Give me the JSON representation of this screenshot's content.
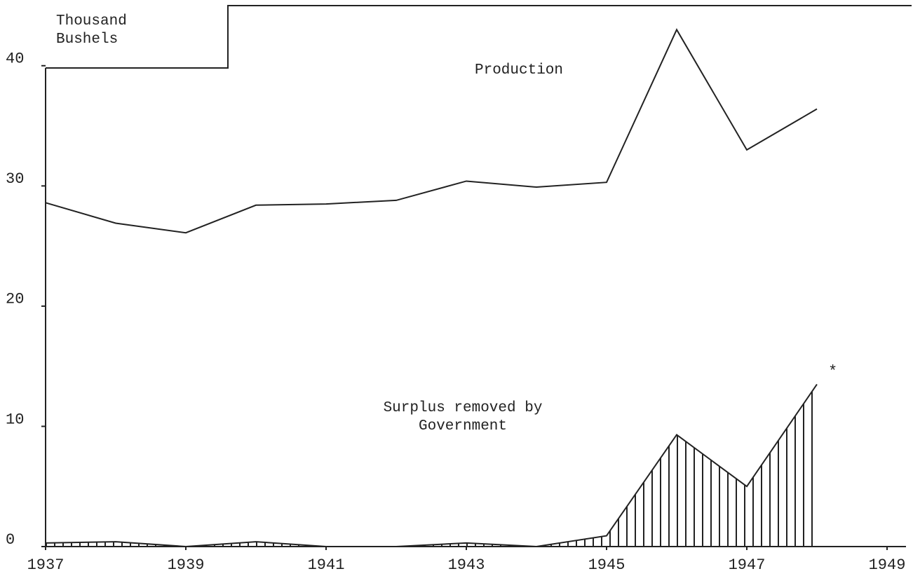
{
  "chart_data": {
    "type": "line",
    "y_label": "Thousand Bushels",
    "x": [
      1937,
      1938,
      1939,
      1940,
      1941,
      1942,
      1943,
      1944,
      1945,
      1946,
      1947,
      1948
    ],
    "series": [
      {
        "name": "Production",
        "color": "#222222",
        "values": [
          28.6,
          26.9,
          26.1,
          28.4,
          28.5,
          28.8,
          30.4,
          29.9,
          30.3,
          43.0,
          33.0,
          36.4
        ]
      },
      {
        "name": "Surplus removed by Government",
        "color": "#222222",
        "hatched": true,
        "values": [
          0.3,
          0.4,
          0,
          0.4,
          0,
          0,
          0.3,
          0,
          0.9,
          9.3,
          5.0,
          13.5
        ]
      }
    ],
    "annotation": "*",
    "xlim": [
      1937,
      1949.25
    ],
    "xticks": [
      1937,
      1939,
      1941,
      1943,
      1945,
      1947,
      1949
    ],
    "ylim": [
      0,
      45
    ],
    "yticks": [
      0,
      10,
      20,
      30,
      40
    ],
    "grid": false
  }
}
